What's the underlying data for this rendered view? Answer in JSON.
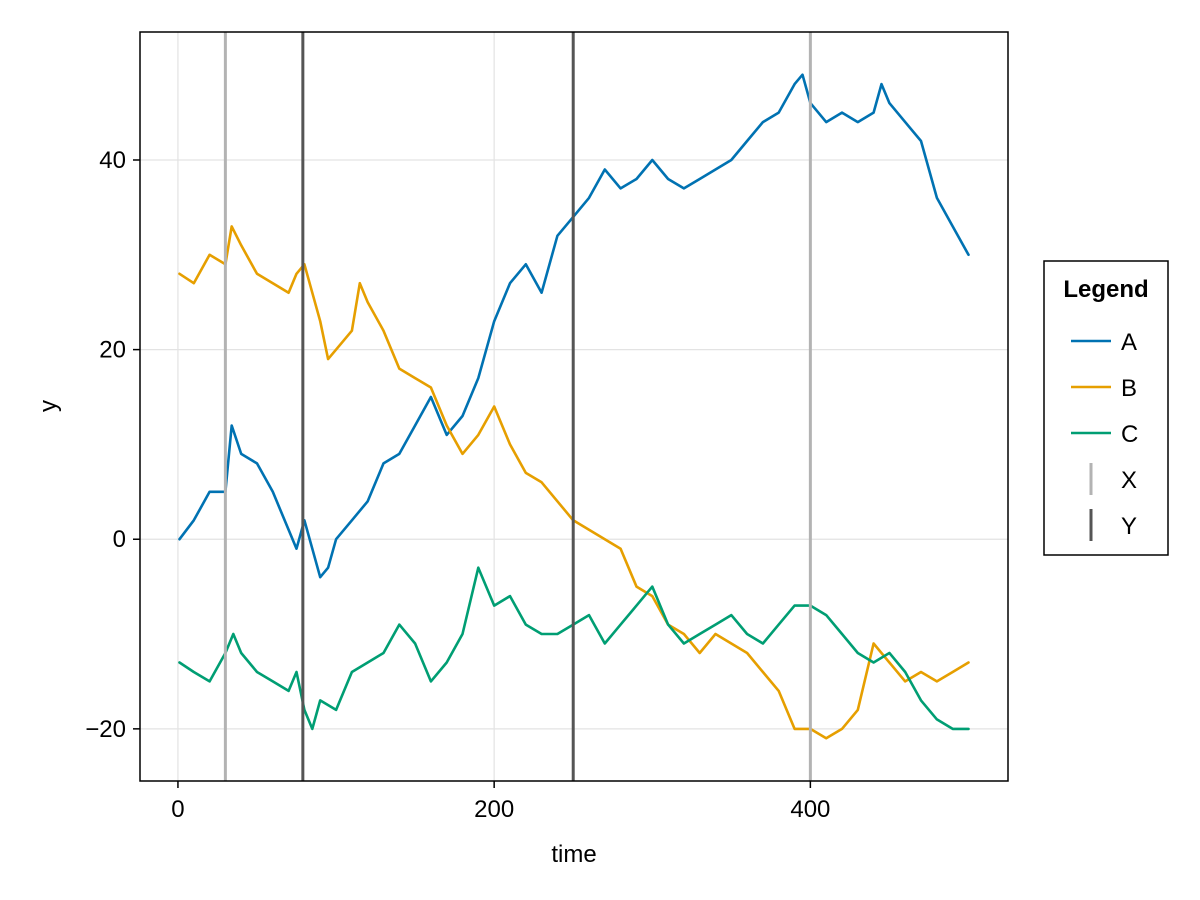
{
  "chart_data": {
    "type": "line",
    "title": "",
    "xlabel": "time",
    "ylabel": "y",
    "xlim": [
      -24,
      525
    ],
    "ylim": [
      -25.5,
      53.5
    ],
    "xticks": [
      0,
      200,
      400
    ],
    "yticks": [
      -20,
      0,
      20,
      40
    ],
    "grid": true,
    "legend": {
      "title": "Legend",
      "placement": "right",
      "entries": [
        {
          "label": "A",
          "kind": "line",
          "color": "#0072B2"
        },
        {
          "label": "B",
          "kind": "line",
          "color": "#E69F00"
        },
        {
          "label": "C",
          "kind": "line",
          "color": "#009E73"
        },
        {
          "label": "X",
          "kind": "vline",
          "color": "#b3b3b3"
        },
        {
          "label": "Y",
          "kind": "vline",
          "color": "#555555"
        }
      ]
    },
    "series": [
      {
        "name": "A",
        "color": "#0072B2",
        "x": [
          1,
          10,
          20,
          30,
          34,
          40,
          50,
          60,
          70,
          75,
          80,
          85,
          90,
          95,
          100,
          110,
          120,
          130,
          140,
          150,
          160,
          170,
          180,
          190,
          200,
          210,
          220,
          230,
          240,
          250,
          260,
          270,
          280,
          290,
          300,
          310,
          320,
          330,
          340,
          350,
          360,
          370,
          380,
          390,
          395,
          400,
          410,
          420,
          430,
          440,
          445,
          450,
          460,
          470,
          480,
          490,
          500
        ],
        "y": [
          0,
          2,
          5,
          5,
          12,
          9,
          8,
          5,
          1,
          -1,
          2,
          -1,
          -4,
          -3,
          0,
          2,
          4,
          8,
          9,
          12,
          15,
          11,
          13,
          17,
          23,
          27,
          29,
          26,
          32,
          34,
          36,
          39,
          37,
          38,
          40,
          38,
          37,
          38,
          39,
          40,
          42,
          44,
          45,
          48,
          49,
          46,
          44,
          45,
          44,
          45,
          48,
          46,
          44,
          42,
          36,
          33,
          30
        ]
      },
      {
        "name": "B",
        "color": "#E69F00",
        "x": [
          1,
          10,
          20,
          30,
          34,
          40,
          50,
          60,
          70,
          75,
          80,
          90,
          95,
          100,
          110,
          115,
          120,
          130,
          140,
          150,
          160,
          170,
          180,
          190,
          200,
          210,
          220,
          230,
          240,
          250,
          260,
          270,
          280,
          290,
          300,
          310,
          320,
          330,
          340,
          350,
          360,
          370,
          380,
          390,
          400,
          410,
          420,
          430,
          440,
          450,
          460,
          470,
          480,
          490,
          500
        ],
        "y": [
          28,
          27,
          30,
          29,
          33,
          31,
          28,
          27,
          26,
          28,
          29,
          23,
          19,
          20,
          22,
          27,
          25,
          22,
          18,
          17,
          16,
          12,
          9,
          11,
          14,
          10,
          7,
          6,
          4,
          2,
          1,
          0,
          -1,
          -5,
          -6,
          -9,
          -10,
          -12,
          -10,
          -11,
          -12,
          -14,
          -16,
          -20,
          -20,
          -21,
          -20,
          -18,
          -11,
          -13,
          -15,
          -14,
          -15,
          -14,
          -13
        ]
      },
      {
        "name": "C",
        "color": "#009E73",
        "x": [
          1,
          10,
          20,
          30,
          35,
          40,
          50,
          60,
          70,
          75,
          80,
          85,
          90,
          100,
          110,
          120,
          130,
          140,
          150,
          160,
          170,
          180,
          190,
          200,
          210,
          220,
          230,
          240,
          250,
          260,
          270,
          280,
          290,
          300,
          310,
          320,
          330,
          340,
          350,
          360,
          370,
          380,
          390,
          400,
          410,
          420,
          430,
          440,
          450,
          460,
          470,
          480,
          490,
          500
        ],
        "y": [
          -13,
          -14,
          -15,
          -12,
          -10,
          -12,
          -14,
          -15,
          -16,
          -14,
          -18,
          -20,
          -17,
          -18,
          -14,
          -13,
          -12,
          -9,
          -11,
          -15,
          -13,
          -10,
          -3,
          -7,
          -6,
          -9,
          -10,
          -10,
          -9,
          -8,
          -11,
          -9,
          -7,
          -5,
          -9,
          -11,
          -10,
          -9,
          -8,
          -10,
          -11,
          -9,
          -7,
          -7,
          -8,
          -10,
          -12,
          -13,
          -12,
          -14,
          -17,
          -19,
          -20,
          -20
        ]
      }
    ],
    "vlines": [
      {
        "name": "X",
        "x": 30,
        "color": "#b3b3b3"
      },
      {
        "name": "Y",
        "x": 79,
        "color": "#555555"
      },
      {
        "name": "Y",
        "x": 250,
        "color": "#555555"
      },
      {
        "name": "X",
        "x": 400,
        "color": "#b3b3b3"
      }
    ]
  }
}
